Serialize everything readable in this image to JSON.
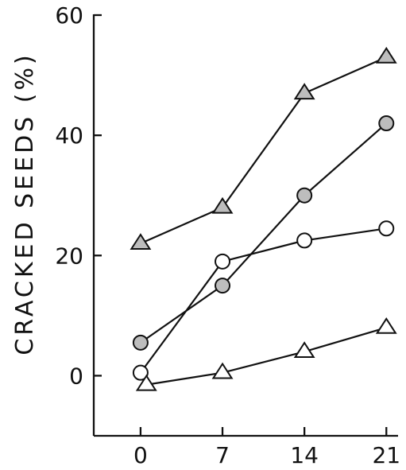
{
  "chart_data": {
    "type": "line",
    "ylabel": "CRACKED SEEDS (%)",
    "xlabel": "",
    "title": "",
    "x_ticks": [
      "0",
      "7",
      "14",
      "21"
    ],
    "y_ticks": [
      "0",
      "20",
      "40",
      "60"
    ],
    "xlim": [
      -4,
      22
    ],
    "ylim": [
      -10,
      60
    ],
    "grid": false,
    "legend": "none",
    "series": [
      {
        "marker": "filled-triangle",
        "x": [
          0,
          7,
          14,
          21
        ],
        "y": [
          22,
          28,
          47,
          53
        ]
      },
      {
        "marker": "filled-circle",
        "x": [
          0,
          7,
          14,
          21
        ],
        "y": [
          5.5,
          15,
          30,
          42
        ]
      },
      {
        "marker": "open-circle",
        "x": [
          0,
          7,
          14,
          21
        ],
        "y": [
          0.5,
          19,
          22.5,
          24.5
        ]
      },
      {
        "marker": "open-triangle",
        "x": [
          0.5,
          7,
          14,
          21
        ],
        "y": [
          -1.5,
          0.5,
          4,
          8
        ]
      }
    ]
  }
}
